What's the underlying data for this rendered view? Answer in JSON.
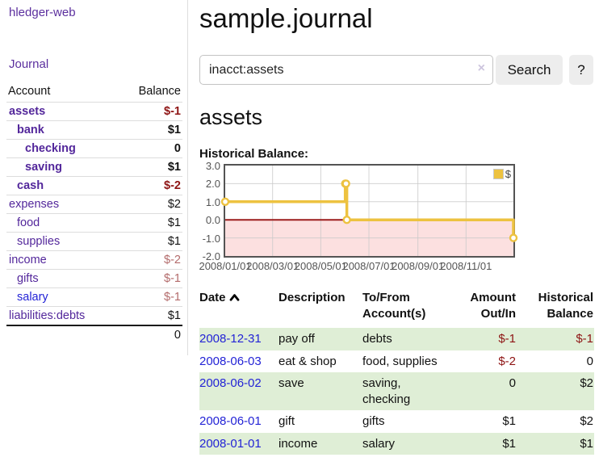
{
  "sidebar": {
    "brand": "hledger-web",
    "journal_label": "Journal",
    "accounts_table": {
      "headers": {
        "account": "Account",
        "balance": "Balance"
      },
      "rows": [
        {
          "name": "assets",
          "indent": 0,
          "bold": true,
          "balance": "$-1",
          "negative": true,
          "unvisited": false
        },
        {
          "name": "bank",
          "indent": 1,
          "bold": true,
          "balance": "$1",
          "negative": false,
          "unvisited": false
        },
        {
          "name": "checking",
          "indent": 2,
          "bold": true,
          "balance": "0",
          "negative": false,
          "unvisited": false
        },
        {
          "name": "saving",
          "indent": 2,
          "bold": true,
          "balance": "$1",
          "negative": false,
          "unvisited": false
        },
        {
          "name": "cash",
          "indent": 1,
          "bold": true,
          "balance": "$-2",
          "negative": true,
          "unvisited": false
        },
        {
          "name": "expenses",
          "indent": 0,
          "bold": false,
          "balance": "$2",
          "negative": false,
          "unvisited": false
        },
        {
          "name": "food",
          "indent": 1,
          "bold": false,
          "balance": "$1",
          "negative": false,
          "unvisited": false
        },
        {
          "name": "supplies",
          "indent": 1,
          "bold": false,
          "balance": "$1",
          "negative": false,
          "unvisited": false
        },
        {
          "name": "income",
          "indent": 0,
          "bold": false,
          "balance": "$-2",
          "negative": true,
          "unvisited": false
        },
        {
          "name": "gifts",
          "indent": 1,
          "bold": false,
          "balance": "$-1",
          "negative": true,
          "unvisited": false
        },
        {
          "name": "salary",
          "indent": 1,
          "bold": false,
          "balance": "$-1",
          "negative": true,
          "unvisited": true
        },
        {
          "name": "liabilities:debts",
          "indent": 0,
          "bold": false,
          "balance": "$1",
          "negative": false,
          "unvisited": false
        }
      ],
      "total": "0"
    }
  },
  "header": {
    "title": "sample.journal"
  },
  "search": {
    "value": "inacct:assets",
    "clear_icon": "×",
    "button_label": "Search",
    "help_label": "?"
  },
  "account_page": {
    "heading": "assets",
    "chart_label": "Historical Balance:"
  },
  "chart_data": {
    "type": "line",
    "step": true,
    "title": "Historical Balance:",
    "series": [
      {
        "name": "$",
        "color": "#edc240",
        "points": [
          [
            "2008-01-01",
            1
          ],
          [
            "2008-06-01",
            2
          ],
          [
            "2008-06-02",
            2
          ],
          [
            "2008-06-03",
            0
          ],
          [
            "2008-12-31",
            -1
          ]
        ]
      }
    ],
    "x_range": [
      "2008-01-01",
      "2008-12-31"
    ],
    "ylim": [
      -2,
      3
    ],
    "y_ticks": [
      3,
      2,
      1,
      0,
      -1,
      -2
    ],
    "y_tick_labels": [
      "3.0",
      "2.0",
      "1.0",
      "0.0",
      "-1.0",
      "-2.0"
    ],
    "x_ticks": [
      "2008-01-01",
      "2008-03-01",
      "2008-05-01",
      "2008-07-01",
      "2008-09-01",
      "2008-11-01"
    ],
    "x_tick_labels": [
      "2008/01/01",
      "2008/03/01",
      "2008/05/01",
      "2008/07/01",
      "2008/09/01",
      "2008/11/01"
    ],
    "legend": {
      "label": "$",
      "position": "top-right"
    },
    "grid": true,
    "negative_region_fill": "#fce0e0",
    "zero_line_color": "#9b1c1c",
    "plot_border_color": "#545454",
    "grid_color": "#c9c9c9"
  },
  "register_table": {
    "headers": {
      "date": "Date",
      "description": "Description",
      "accounts": "To/From Account(s)",
      "amount": "Amount Out/In",
      "balance": "Historical Balance"
    },
    "sort": {
      "column": "date",
      "direction": "ascending"
    },
    "rows": [
      {
        "date": "2008-12-31",
        "description": "pay off",
        "accounts": "debts",
        "amount": "$-1",
        "amount_negative": true,
        "balance": "$-1",
        "balance_negative": true
      },
      {
        "date": "2008-06-03",
        "description": "eat & shop",
        "accounts": "food, supplies",
        "amount": "$-2",
        "amount_negative": true,
        "balance": "0",
        "balance_negative": false
      },
      {
        "date": "2008-06-02",
        "description": "save",
        "accounts": "saving, checking",
        "amount": "0",
        "amount_negative": false,
        "balance": "$2",
        "balance_negative": false
      },
      {
        "date": "2008-06-01",
        "description": "gift",
        "accounts": "gifts",
        "amount": "$1",
        "amount_negative": false,
        "balance": "$2",
        "balance_negative": false
      },
      {
        "date": "2008-01-01",
        "description": "income",
        "accounts": "salary",
        "amount": "$1",
        "amount_negative": false,
        "balance": "$1",
        "balance_negative": false
      }
    ]
  },
  "colors": {
    "link_purple": "#5b2f9e",
    "link_blue": "#2323d6",
    "negative_strong": "#8e1414",
    "negative_soft": "#b36b6b",
    "row_stripe_green": "#dfeed6",
    "series_yellow": "#edc240"
  }
}
